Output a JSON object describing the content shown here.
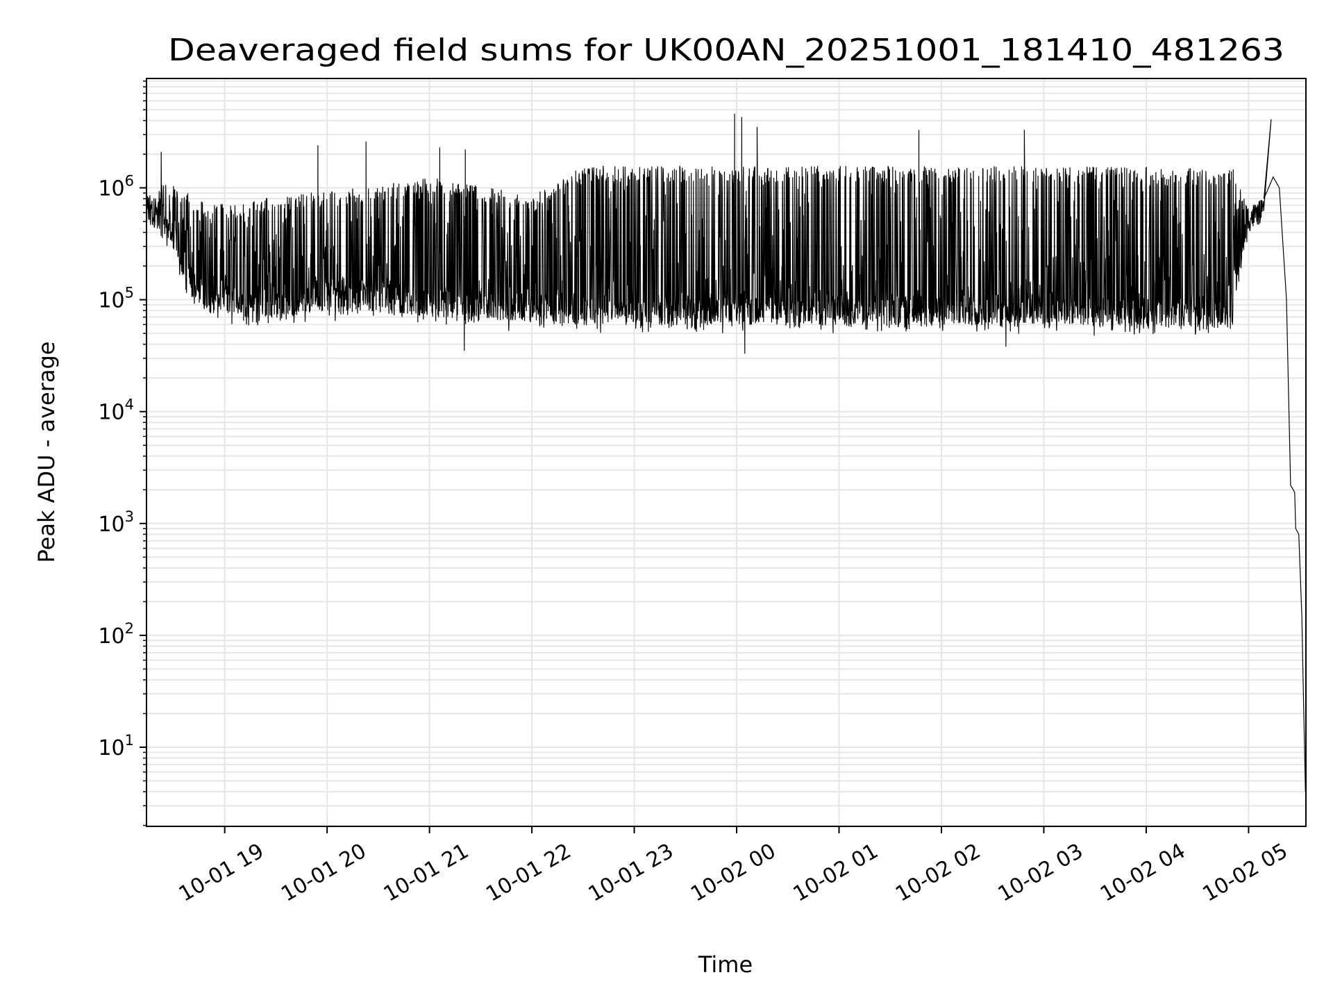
{
  "chart_data": {
    "type": "line",
    "title": "Deaveraged field sums for UK00AN_20251001_181410_481263",
    "xlabel": "Time",
    "ylabel": "Peak ADU - average",
    "yscale": "log",
    "ylim": [
      1.96,
      9500000
    ],
    "xlim_hours_since_10-01_00": [
      18.236,
      29.56
    ],
    "grid": true,
    "line_color": "#000000",
    "grid_color": "#e6e6e6",
    "x_ticks": [
      {
        "h": 19,
        "label": "10-01 19"
      },
      {
        "h": 20,
        "label": "10-01 20"
      },
      {
        "h": 21,
        "label": "10-01 21"
      },
      {
        "h": 22,
        "label": "10-01 22"
      },
      {
        "h": 23,
        "label": "10-01 23"
      },
      {
        "h": 24,
        "label": "10-02 00"
      },
      {
        "h": 25,
        "label": "10-02 01"
      },
      {
        "h": 26,
        "label": "10-02 02"
      },
      {
        "h": 27,
        "label": "10-02 03"
      },
      {
        "h": 28,
        "label": "10-02 04"
      },
      {
        "h": 29,
        "label": "10-02 05"
      }
    ],
    "y_ticks": [
      {
        "exp": 1,
        "base": "10",
        "sup": "1"
      },
      {
        "exp": 2,
        "base": "10",
        "sup": "2"
      },
      {
        "exp": 3,
        "base": "10",
        "sup": "3"
      },
      {
        "exp": 4,
        "base": "10",
        "sup": "4"
      },
      {
        "exp": 5,
        "base": "10",
        "sup": "5"
      },
      {
        "exp": 6,
        "base": "10",
        "sup": "6"
      }
    ],
    "envelope": {
      "description_units": "hours since 10-01 00:00, ADU",
      "t": [
        18.24,
        18.4,
        18.6,
        18.8,
        19.0,
        19.5,
        20.0,
        20.5,
        21.0,
        21.5,
        22.0,
        22.5,
        23.0,
        23.5,
        24.0,
        25.0,
        26.0,
        27.0,
        28.0,
        28.85,
        29.0,
        29.15
      ],
      "low": [
        500000,
        400000,
        150000,
        80000,
        70000,
        70000,
        80000,
        80000,
        70000,
        60000,
        65000,
        60000,
        60000,
        60000,
        60000,
        60000,
        60000,
        60000,
        55000,
        60000,
        400000,
        500000
      ],
      "high": [
        800000,
        1100000,
        900000,
        700000,
        700000,
        800000,
        900000,
        1000000,
        1200000,
        1000000,
        800000,
        1500000,
        1500000,
        1500000,
        1500000,
        1500000,
        1500000,
        1500000,
        1450000,
        1400000,
        700000,
        800000
      ]
    },
    "spikes": [
      [
        18.38,
        2100000
      ],
      [
        19.91,
        2400000
      ],
      [
        20.38,
        2600000
      ],
      [
        21.1,
        2300000
      ],
      [
        21.35,
        2200000
      ],
      [
        23.98,
        4600000
      ],
      [
        24.05,
        4300000
      ],
      [
        24.2,
        3500000
      ],
      [
        25.78,
        3300000
      ],
      [
        26.81,
        3300000
      ],
      [
        29.22,
        4100000
      ],
      [
        21.34,
        35000
      ],
      [
        24.08,
        33000
      ],
      [
        26.63,
        38000
      ]
    ],
    "tail": [
      [
        29.15,
        800000
      ],
      [
        29.24,
        1250000
      ],
      [
        29.3,
        1000000
      ],
      [
        29.37,
        100000
      ],
      [
        29.41,
        2200
      ],
      [
        29.45,
        1900
      ],
      [
        29.46,
        900
      ],
      [
        29.49,
        800
      ],
      [
        29.52,
        150
      ],
      [
        29.53,
        50
      ],
      [
        29.555,
        4
      ]
    ]
  }
}
